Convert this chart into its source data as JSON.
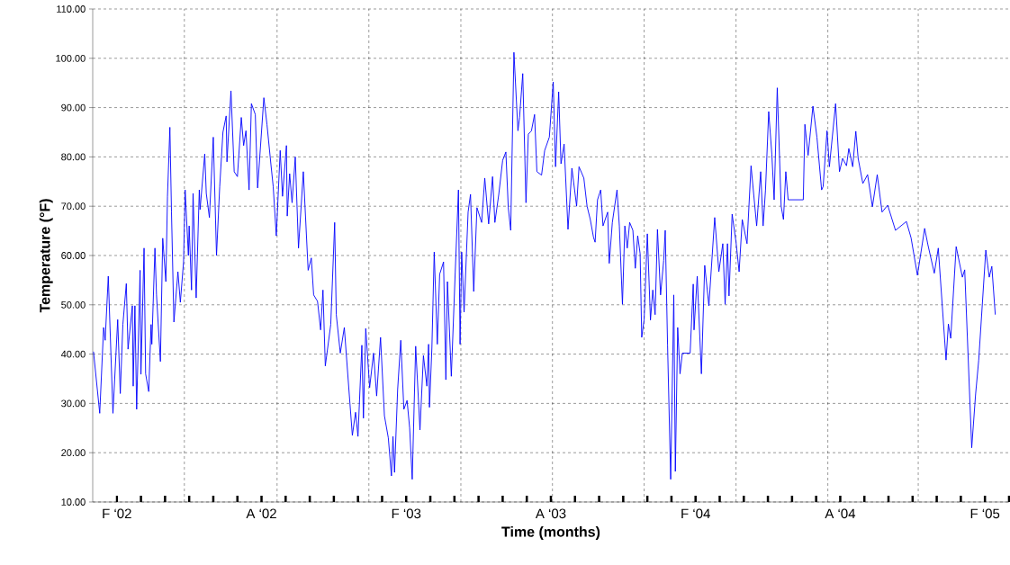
{
  "chart_data": {
    "type": "line",
    "xlabel": "Time (months)",
    "ylabel": "Temperature (°F)",
    "xlim": [
      "2002-01",
      "2005-03"
    ],
    "ylim": [
      10,
      110
    ],
    "xticks": [
      {
        "value": "2002-02",
        "label": "F ‘02"
      },
      {
        "value": "2002-03",
        "label": null
      },
      {
        "value": "2002-04",
        "label": null
      },
      {
        "value": "2002-05",
        "label": null
      },
      {
        "value": "2002-06",
        "label": null
      },
      {
        "value": "2002-07",
        "label": null
      },
      {
        "value": "2002-08",
        "label": "A ‘02"
      },
      {
        "value": "2002-09",
        "label": null
      },
      {
        "value": "2002-10",
        "label": null
      },
      {
        "value": "2002-11",
        "label": null
      },
      {
        "value": "2002-12",
        "label": null
      },
      {
        "value": "2003-01",
        "label": null
      },
      {
        "value": "2003-02",
        "label": "F ‘03"
      },
      {
        "value": "2003-03",
        "label": null
      },
      {
        "value": "2003-04",
        "label": null
      },
      {
        "value": "2003-05",
        "label": null
      },
      {
        "value": "2003-06",
        "label": null
      },
      {
        "value": "2003-07",
        "label": null
      },
      {
        "value": "2003-08",
        "label": "A ‘03"
      },
      {
        "value": "2003-09",
        "label": null
      },
      {
        "value": "2003-10",
        "label": null
      },
      {
        "value": "2003-11",
        "label": null
      },
      {
        "value": "2003-12",
        "label": null
      },
      {
        "value": "2004-01",
        "label": null
      },
      {
        "value": "2004-02",
        "label": "F ‘04"
      },
      {
        "value": "2004-03",
        "label": null
      },
      {
        "value": "2004-04",
        "label": null
      },
      {
        "value": "2004-05",
        "label": null
      },
      {
        "value": "2004-06",
        "label": null
      },
      {
        "value": "2004-07",
        "label": null
      },
      {
        "value": "2004-08",
        "label": "A ‘04"
      },
      {
        "value": "2004-09",
        "label": null
      },
      {
        "value": "2004-10",
        "label": null
      },
      {
        "value": "2004-11",
        "label": null
      },
      {
        "value": "2004-12",
        "label": null
      },
      {
        "value": "2005-01",
        "label": null
      },
      {
        "value": "2005-02",
        "label": "F ‘05"
      },
      {
        "value": "2005-03",
        "label": null
      }
    ],
    "yticks": [
      {
        "value": 10,
        "label": "10.00"
      },
      {
        "value": 20,
        "label": "20.00"
      },
      {
        "value": 30,
        "label": "30.00"
      },
      {
        "value": 40,
        "label": "40.00"
      },
      {
        "value": 50,
        "label": "50.00"
      },
      {
        "value": 60,
        "label": "60.00"
      },
      {
        "value": 70,
        "label": "70.00"
      },
      {
        "value": 80,
        "label": "80.00"
      },
      {
        "value": 90,
        "label": "90.00"
      },
      {
        "value": 100,
        "label": "100.00"
      },
      {
        "value": 110,
        "label": "110.00"
      }
    ],
    "grid": "y",
    "ref_lines": [
      {
        "axis": "x",
        "value": "2002-04-25",
        "color": "#000000",
        "line_style": "dashed"
      },
      {
        "axis": "x",
        "value": "2002-08-21",
        "color": "#000000",
        "line_style": "dashed"
      },
      {
        "axis": "x",
        "value": "2002-12-15",
        "color": "#000000",
        "line_style": "dashed"
      },
      {
        "axis": "x",
        "value": "2003-04-09",
        "color": "#000000",
        "line_style": "dashed"
      },
      {
        "axis": "x",
        "value": "2003-08-03",
        "color": "#000000",
        "line_style": "dashed"
      },
      {
        "axis": "x",
        "value": "2003-11-27",
        "color": "#000000",
        "line_style": "dashed"
      },
      {
        "axis": "x",
        "value": "2004-03-22",
        "color": "#000000",
        "line_style": "dashed"
      },
      {
        "axis": "x",
        "value": "2004-07-16",
        "color": "#000000",
        "line_style": "dashed"
      },
      {
        "axis": "x",
        "value": "2004-11-08",
        "color": "#000000",
        "line_style": "dashed"
      }
    ],
    "series": [
      {
        "color": "#0000ff",
        "x": [
          "2002-01-02",
          "2002-01-10",
          "2002-01-15",
          "2002-01-17",
          "2002-01-21",
          "2002-01-27",
          "2002-02-02",
          "2002-02-05",
          "2002-02-08",
          "2002-02-12",
          "2002-02-14",
          "2002-02-19",
          "2002-02-20",
          "2002-02-22",
          "2002-02-24",
          "2002-02-28",
          "2002-03-01",
          "2002-03-05",
          "2002-03-07",
          "2002-03-11",
          "2002-03-14",
          "2002-03-15",
          "2002-03-19",
          "2002-03-21",
          "2002-03-26",
          "2002-03-29",
          "2002-04-02",
          "2002-04-04",
          "2002-04-07",
          "2002-04-09",
          "2002-04-12",
          "2002-04-17",
          "2002-04-20",
          "2002-04-24",
          "2002-04-26",
          "2002-04-30",
          "2002-05-01",
          "2002-05-04",
          "2002-05-06",
          "2002-05-10",
          "2002-05-14",
          "2002-05-15",
          "2002-05-21",
          "2002-05-23",
          "2002-05-27",
          "2002-06-01",
          "2002-06-05",
          "2002-06-09",
          "2002-06-13",
          "2002-06-17",
          "2002-06-18",
          "2002-06-23",
          "2002-06-27",
          "2002-07-01",
          "2002-07-06",
          "2002-07-09",
          "2002-07-12",
          "2002-07-16",
          "2002-07-19",
          "2002-07-24",
          "2002-07-27",
          "2002-08-04",
          "2002-08-08",
          "2002-08-13",
          "2002-08-16",
          "2002-08-20",
          "2002-08-25",
          "2002-08-28",
          "2002-09-02",
          "2002-09-03",
          "2002-09-06",
          "2002-09-09",
          "2002-09-13",
          "2002-09-17",
          "2002-09-23",
          "2002-09-29",
          "2002-10-03",
          "2002-10-06",
          "2002-10-11",
          "2002-10-15",
          "2002-10-18",
          "2002-10-21",
          "2002-10-28",
          "2002-11-02",
          "2002-11-04",
          "2002-11-09",
          "2002-11-14",
          "2002-11-21",
          "2002-11-24",
          "2002-11-28",
          "2002-12-01",
          "2002-12-06",
          "2002-12-08",
          "2002-12-11",
          "2002-12-16",
          "2002-12-21",
          "2002-12-25",
          "2002-12-30",
          "2003-01-04",
          "2003-01-09",
          "2003-01-13",
          "2003-01-15",
          "2003-01-17",
          "2003-01-21",
          "2003-01-25",
          "2003-01-29",
          "2003-02-02",
          "2003-02-05",
          "2003-02-08",
          "2003-02-12",
          "2003-02-17",
          "2003-02-21",
          "2003-02-25",
          "2003-02-27",
          "2003-02-28",
          "2003-03-03",
          "2003-03-06",
          "2003-03-10",
          "2003-03-13",
          "2003-03-18",
          "2003-03-21",
          "2003-03-23",
          "2003-03-28",
          "2003-04-02",
          "2003-04-06",
          "2003-04-08",
          "2003-04-10",
          "2003-04-13",
          "2003-04-18",
          "2003-04-21",
          "2003-04-25",
          "2003-04-29",
          "2003-05-05",
          "2003-05-09",
          "2003-05-14",
          "2003-05-19",
          "2003-05-22",
          "2003-05-27",
          "2003-06-01",
          "2003-06-05",
          "2003-06-08",
          "2003-06-11",
          "2003-06-15",
          "2003-06-20",
          "2003-06-22",
          "2003-06-26",
          "2003-06-30",
          "2003-07-03",
          "2003-07-07",
          "2003-07-11",
          "2003-07-14",
          "2003-07-20",
          "2003-07-24",
          "2003-07-30",
          "2003-08-04",
          "2003-08-07",
          "2003-08-11",
          "2003-08-14",
          "2003-08-18",
          "2003-08-23",
          "2003-08-28",
          "2003-09-03",
          "2003-09-06",
          "2003-09-12",
          "2003-09-16",
          "2003-09-20",
          "2003-09-24",
          "2003-09-26",
          "2003-09-29",
          "2003-10-03",
          "2003-10-06",
          "2003-10-12",
          "2003-10-14",
          "2003-10-18",
          "2003-10-24",
          "2003-10-27",
          "2003-10-31",
          "2003-11-03",
          "2003-11-06",
          "2003-11-09",
          "2003-11-13",
          "2003-11-16",
          "2003-11-19",
          "2003-11-22",
          "2003-11-24",
          "2003-11-27",
          "2003-12-01",
          "2003-12-05",
          "2003-12-08",
          "2003-12-11",
          "2003-12-14",
          "2003-12-18",
          "2003-12-22",
          "2003-12-24",
          "2003-12-27",
          "2003-12-31",
          "2004-01-04",
          "2004-01-06",
          "2004-01-09",
          "2004-01-12",
          "2004-01-15",
          "2004-01-25",
          "2004-01-29",
          "2004-01-30",
          "2004-02-03",
          "2004-02-08",
          "2004-02-12",
          "2004-02-17",
          "2004-02-24",
          "2004-02-29",
          "2004-03-05",
          "2004-03-08",
          "2004-03-11",
          "2004-03-13",
          "2004-03-17",
          "2004-03-22",
          "2004-03-26",
          "2004-03-30",
          "2004-04-05",
          "2004-04-10",
          "2004-04-17",
          "2004-04-22",
          "2004-04-25",
          "2004-04-28",
          "2004-05-02",
          "2004-05-06",
          "2004-05-09",
          "2004-05-13",
          "2004-05-18",
          "2004-05-21",
          "2004-05-24",
          "2004-05-27",
          "2004-06-15",
          "2004-06-17",
          "2004-06-21",
          "2004-06-27",
          "2004-07-02",
          "2004-07-08",
          "2004-07-10",
          "2004-07-15",
          "2004-07-18",
          "2004-07-26",
          "2004-07-31",
          "2004-08-04",
          "2004-08-09",
          "2004-08-12",
          "2004-08-17",
          "2004-08-21",
          "2004-08-24",
          "2004-08-30",
          "2004-09-05",
          "2004-09-11",
          "2004-09-17",
          "2004-09-23",
          "2004-09-30",
          "2004-10-10",
          "2004-10-24",
          "2004-10-30",
          "2004-11-07",
          "2004-11-16",
          "2004-11-20",
          "2004-11-28",
          "2004-12-03",
          "2004-12-13",
          "2004-12-16",
          "2004-12-19",
          "2004-12-26",
          "2005-01-03",
          "2005-01-06",
          "2005-01-15",
          "2005-01-20",
          "2005-01-24",
          "2005-02-02",
          "2005-02-06",
          "2005-02-09",
          "2005-02-13"
        ],
        "values": [
          40.5,
          28,
          45.4,
          42.8,
          55.8,
          28,
          47,
          32,
          46,
          54.3,
          41,
          49.8,
          33.5,
          49.8,
          28.8,
          57,
          35.9,
          61.5,
          36,
          32.4,
          46,
          42,
          61.5,
          52,
          38.5,
          63.5,
          54.7,
          72,
          86,
          68.8,
          46.5,
          56.7,
          50.5,
          58.7,
          73.3,
          60,
          66,
          53,
          72.6,
          51.4,
          73.3,
          69.3,
          80.6,
          72.6,
          67.7,
          84,
          60,
          74,
          85,
          88.3,
          79,
          93.4,
          77,
          76,
          88,
          82.3,
          85.3,
          73.3,
          90.8,
          88.6,
          73.7,
          92,
          86.6,
          78.6,
          74,
          64,
          81.3,
          72,
          82.3,
          68,
          76.6,
          70.7,
          80,
          61.5,
          77,
          57,
          59.5,
          52,
          50.7,
          44.9,
          53,
          37.6,
          46,
          66.7,
          48,
          40.2,
          45.4,
          30,
          23.5,
          28.2,
          23.3,
          41.8,
          27,
          45.2,
          33.2,
          40.2,
          31.5,
          43.4,
          27.5,
          23,
          15.3,
          23.3,
          16,
          32.8,
          42.8,
          28.8,
          30.6,
          25,
          14.6,
          41.6,
          24.6,
          39.7,
          33.5,
          42,
          29.2,
          41.2,
          60.7,
          42,
          56.2,
          58.7,
          34.8,
          54.7,
          35.5,
          56.7,
          73.3,
          42,
          60.7,
          48.5,
          68.8,
          72.4,
          52.7,
          69.7,
          66.7,
          75.7,
          66.4,
          76,
          66.7,
          72.4,
          79.3,
          81,
          69.7,
          65.1,
          101.2,
          85.3,
          88,
          96.9,
          70.7,
          84.6,
          85.3,
          88.6,
          77,
          76.3,
          81.3,
          84,
          95.2,
          78,
          93.2,
          78.6,
          82.6,
          65.3,
          77.7,
          70,
          78,
          75.7,
          70,
          67.3,
          63.7,
          62.7,
          71.3,
          73.3,
          66,
          68.8,
          58.4,
          66.7,
          73.3,
          66,
          50.1,
          66,
          61.5,
          66.7,
          65.1,
          57.4,
          64,
          60.4,
          43.4,
          47,
          64.4,
          46.9,
          53,
          48,
          65.3,
          52,
          59,
          65.1,
          41.8,
          14.6,
          52,
          16.2,
          45.4,
          36,
          40.2,
          40.2,
          54.2,
          44.9,
          55.8,
          36,
          58,
          49.8,
          67.7,
          56.7,
          62.4,
          50.1,
          62.4,
          51.8,
          68.4,
          62.7,
          56.7,
          67.3,
          62.4,
          78.2,
          66,
          77,
          66,
          73.3,
          89.2,
          80.6,
          71.3,
          94,
          70,
          67.3,
          77,
          71.3,
          71.3,
          86.6,
          80.3,
          90.3,
          84,
          73.3,
          74,
          85.3,
          78,
          90.8,
          77,
          79.7,
          78.2,
          81.7,
          78,
          85.2,
          79.7,
          74.6,
          76.4,
          69.9,
          76.4,
          68.8,
          70.2,
          65.1,
          66.9,
          63.6,
          56,
          65.5,
          62.2,
          56.4,
          61.5,
          38.8,
          46.1,
          43.2,
          61.8,
          55.6,
          57.1,
          21,
          31.9,
          38.8,
          61.1,
          55.6,
          57.8,
          48
        ]
      }
    ]
  }
}
